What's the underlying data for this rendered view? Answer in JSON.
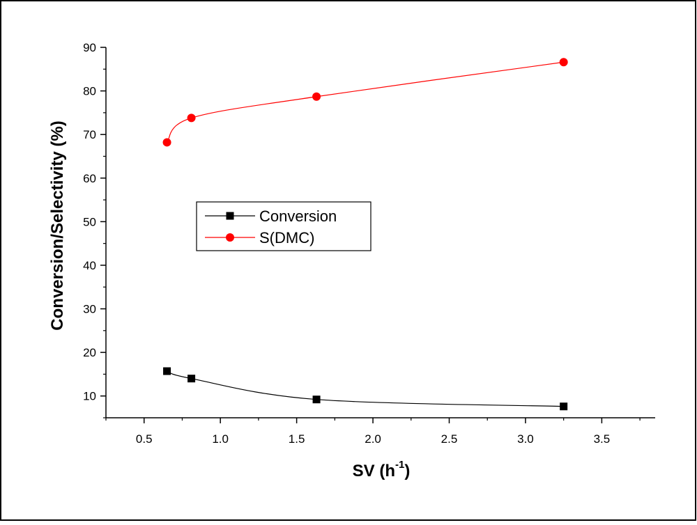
{
  "chart_data": {
    "type": "line",
    "title": "",
    "xlabel": "SV (h",
    "xlabel_sup": "-1",
    "xlabel_close": ")",
    "ylabel": "Conversion/Selectivity (%)",
    "xlim": [
      0.25,
      3.85
    ],
    "ylim": [
      5,
      90
    ],
    "xticks": [
      0.5,
      1.0,
      1.5,
      2.0,
      2.5,
      3.0,
      3.5
    ],
    "xtick_labels": [
      "0.5",
      "1.0",
      "1.5",
      "2.0",
      "2.5",
      "3.0",
      "3.5"
    ],
    "yticks": [
      10,
      20,
      30,
      40,
      50,
      60,
      70,
      80,
      90
    ],
    "ytick_labels": [
      "10",
      "20",
      "30",
      "40",
      "50",
      "60",
      "70",
      "80",
      "90"
    ],
    "grid": false,
    "legend_position": "center-left",
    "series": [
      {
        "name": "Conversion",
        "color": "#000000",
        "marker": "square",
        "x": [
          0.65,
          0.81,
          1.63,
          3.25
        ],
        "y": [
          15.7,
          14.0,
          9.2,
          7.6
        ]
      },
      {
        "name": "S(DMC)",
        "color": "#ff0000",
        "marker": "circle",
        "x": [
          0.65,
          0.81,
          1.63,
          3.25
        ],
        "y": [
          68.2,
          73.8,
          78.7,
          86.6
        ]
      }
    ]
  }
}
